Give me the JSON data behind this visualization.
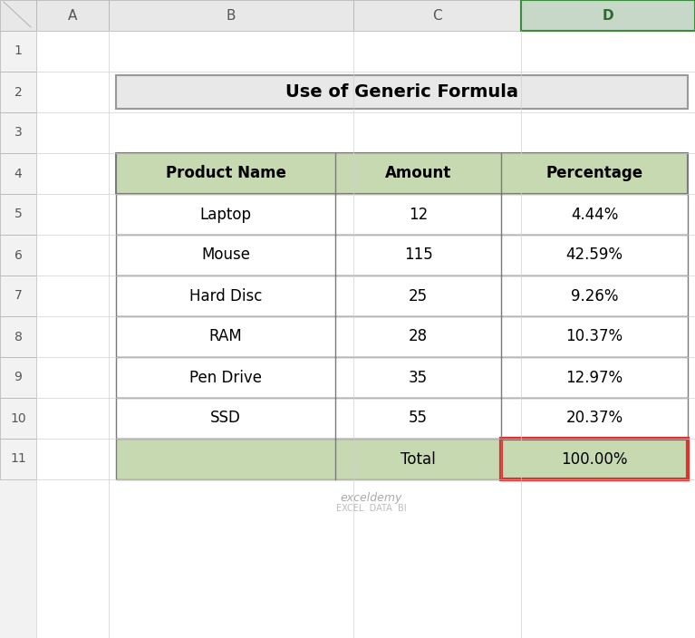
{
  "title": "Use of Generic Formula",
  "headers": [
    "Product Name",
    "Amount",
    "Percentage"
  ],
  "rows": [
    [
      "Laptop",
      "12",
      "4.44%"
    ],
    [
      "Mouse",
      "115",
      "42.59%"
    ],
    [
      "Hard Disc",
      "25",
      "9.26%"
    ],
    [
      "RAM",
      "28",
      "10.37%"
    ],
    [
      "Pen Drive",
      "35",
      "12.97%"
    ],
    [
      "SSD",
      "55",
      "20.37%"
    ]
  ],
  "total_row": [
    "",
    "Total",
    "100.00%"
  ],
  "header_bg": "#c6d9b0",
  "total_bg": "#c6d9b0",
  "row_bg": "#ffffff",
  "title_bg": "#e8e8e8",
  "grid_color": "#7a7a7a",
  "total_highlight_color": "#e03030",
  "text_color": "#000000",
  "col_header_bg": "#e8e8e8",
  "selected_col_bg": "#c8d8c8",
  "fig_bg": "#f0f0f0",
  "col_names": [
    "A",
    "B",
    "C",
    "D"
  ],
  "col_positions": [
    40,
    120,
    390,
    575,
    767
  ],
  "row_tops": [
    670,
    625,
    580,
    535,
    490,
    445,
    400,
    355,
    310,
    265,
    220,
    175
  ],
  "watermark_text": "exceldemy",
  "watermark_sub": "EXCEL  DATA  BI"
}
